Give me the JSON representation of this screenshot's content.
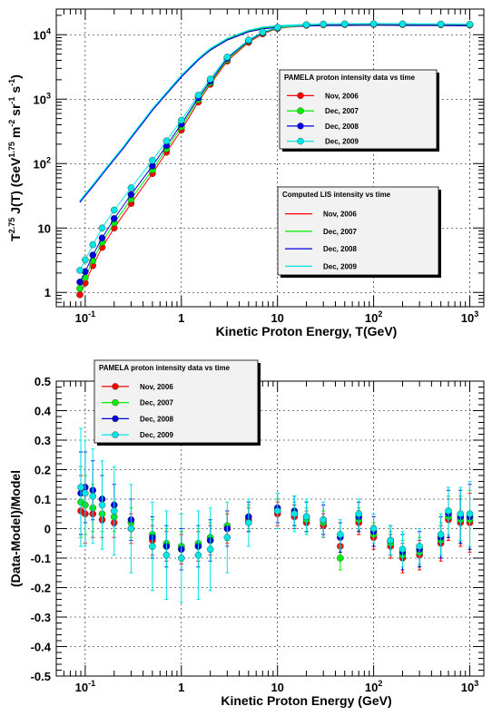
{
  "figure_colors": {
    "nov2006": "#ff0000",
    "dec2007": "#00ee00",
    "dec2008": "#0000dd",
    "dec2009": "#00e6e6"
  },
  "chart_data": [
    {
      "type": "scatter",
      "xlabel": "Kinetic Proton Energy, T(GeV)",
      "ylabel_parts": {
        "pre": "T",
        "sup1": "2.75",
        "mid": " J(T) (GeV",
        "sup2": "1.75",
        "m": " m",
        "sup3": "-2",
        "sr": " sr",
        "sup4": "-1",
        "s": " s",
        "sup5": "-1",
        "end": ")"
      },
      "xscale": "log",
      "yscale": "log",
      "xlim": [
        0.05,
        1400
      ],
      "ylim": [
        0.6,
        25000
      ],
      "grid": true,
      "xticks": [
        {
          "v": 0.1,
          "m": "10",
          "e": "-1"
        },
        {
          "v": 1,
          "m": "1",
          "e": ""
        },
        {
          "v": 10,
          "m": "10",
          "e": ""
        },
        {
          "v": 100,
          "m": "10",
          "e": "2"
        },
        {
          "v": 1000,
          "m": "10",
          "e": "3"
        }
      ],
      "yticks": [
        {
          "v": 1,
          "t": "1"
        },
        {
          "v": 10,
          "t": "10"
        },
        {
          "v": 100,
          "t": "10",
          "e": "2"
        },
        {
          "v": 1000,
          "t": "10",
          "e": "3"
        },
        {
          "v": 10000,
          "t": "10",
          "e": "4"
        }
      ],
      "legends": [
        {
          "title": "PAMELA proton intensity data vs time",
          "position": "upper-right",
          "kind": "marker",
          "entries": [
            {
              "label": "Nov, 2006",
              "key": "nov2006"
            },
            {
              "label": "Dec, 2007",
              "key": "dec2007"
            },
            {
              "label": "Dec, 2008",
              "key": "dec2008"
            },
            {
              "label": "Dec, 2009",
              "key": "dec2009"
            }
          ]
        },
        {
          "title": "Computed LIS intensity vs time",
          "position": "middle-right",
          "kind": "line",
          "entries": [
            {
              "label": "Nov, 2006",
              "key": "nov2006"
            },
            {
              "label": "Dec, 2007",
              "key": "dec2007"
            },
            {
              "label": "Dec, 2008",
              "key": "dec2008"
            },
            {
              "label": "Dec, 2009",
              "key": "dec2009"
            }
          ]
        }
      ],
      "model_x": [
        0.088,
        0.1,
        0.12,
        0.15,
        0.2,
        0.25,
        0.3,
        0.4,
        0.5,
        0.7,
        1,
        1.5,
        2,
        3,
        5,
        7,
        10,
        20,
        30,
        50,
        100,
        200,
        500,
        1000
      ],
      "model_y": [
        26,
        33,
        46,
        70,
        120,
        180,
        260,
        450,
        700,
        1250,
        2300,
        4200,
        6000,
        8600,
        11500,
        12800,
        13500,
        14200,
        14400,
        14500,
        14600,
        14500,
        14400,
        14300
      ],
      "series": [
        {
          "name": "Nov, 2006",
          "key": "nov2006",
          "x": [
            0.088,
            0.1,
            0.12,
            0.15,
            0.2,
            0.3,
            0.5,
            0.7,
            1,
            1.5,
            2,
            3,
            5,
            7,
            10,
            20,
            30,
            50,
            100,
            200,
            500,
            1000
          ],
          "y": [
            0.92,
            1.4,
            2.6,
            5,
            10,
            24,
            70,
            150,
            330,
            900,
            1700,
            3900,
            7600,
            10300,
            12500,
            14000,
            14300,
            14400,
            14500,
            14400,
            14300,
            14200
          ]
        },
        {
          "name": "Dec, 2007",
          "key": "dec2007",
          "x": [
            0.088,
            0.1,
            0.12,
            0.15,
            0.2,
            0.3,
            0.5,
            0.7,
            1,
            1.5,
            2,
            3,
            5,
            7,
            10,
            20,
            30,
            50,
            100,
            200,
            500,
            1000
          ],
          "y": [
            1.15,
            1.7,
            3.1,
            6,
            12,
            28,
            80,
            170,
            370,
            980,
            1800,
            4100,
            7900,
            10600,
            12700,
            14100,
            14400,
            14500,
            14600,
            14500,
            14400,
            14300
          ]
        },
        {
          "name": "Dec, 2008",
          "key": "dec2008",
          "x": [
            0.088,
            0.1,
            0.12,
            0.15,
            0.2,
            0.3,
            0.5,
            0.7,
            1,
            1.5,
            2,
            3,
            5,
            7,
            10,
            20,
            30,
            50,
            100,
            200,
            500,
            1000
          ],
          "y": [
            1.45,
            2.1,
            3.8,
            7,
            14,
            33,
            92,
            190,
            410,
            1050,
            1900,
            4300,
            8100,
            10800,
            12900,
            14200,
            14500,
            14600,
            14700,
            14600,
            14500,
            14400
          ]
        },
        {
          "name": "Dec, 2009",
          "key": "dec2009",
          "x": [
            0.088,
            0.1,
            0.12,
            0.15,
            0.2,
            0.3,
            0.5,
            0.7,
            1,
            1.5,
            2,
            3,
            5,
            7,
            10,
            20,
            30,
            50,
            100,
            200,
            500,
            1000
          ],
          "y": [
            2.2,
            3.2,
            5.5,
            10,
            19,
            42,
            112,
            225,
            470,
            1150,
            2050,
            4500,
            8300,
            11000,
            13000,
            14300,
            14600,
            14700,
            14800,
            14700,
            14600,
            14500
          ]
        }
      ]
    },
    {
      "type": "scatter",
      "xlabel": "Kinetic Proton Energy (GeV)",
      "ylabel": "(Data-Model)/Model",
      "xscale": "log",
      "xlim": [
        0.05,
        1400
      ],
      "ylim": [
        -0.5,
        0.5
      ],
      "grid": true,
      "xticks": [
        {
          "v": 0.1,
          "m": "10",
          "e": "-1"
        },
        {
          "v": 1,
          "m": "1",
          "e": ""
        },
        {
          "v": 10,
          "m": "10",
          "e": ""
        },
        {
          "v": 100,
          "m": "10",
          "e": "2"
        },
        {
          "v": 1000,
          "m": "10",
          "e": "3"
        }
      ],
      "yticks": [
        "-0.5",
        "-0.4",
        "-0.3",
        "-0.2",
        "-0.1",
        "0",
        "0.1",
        "0.2",
        "0.3",
        "0.4",
        "0.5"
      ],
      "legends": [
        {
          "title": "PAMELA proton intensity data vs time",
          "position": "upper-left",
          "kind": "marker",
          "entries": [
            {
              "label": "Nov, 2006",
              "key": "nov2006"
            },
            {
              "label": "Dec, 2007",
              "key": "dec2007"
            },
            {
              "label": "Dec, 2008",
              "key": "dec2008"
            },
            {
              "label": "Dec, 2009",
              "key": "dec2009"
            }
          ]
        }
      ],
      "series": [
        {
          "name": "Nov, 2006",
          "key": "nov2006",
          "x": [
            0.09,
            0.1,
            0.12,
            0.15,
            0.2,
            0.3,
            0.5,
            0.7,
            1,
            1.5,
            2,
            3,
            5,
            10,
            15,
            20,
            30,
            45,
            70,
            100,
            150,
            200,
            300,
            500,
            600,
            800,
            1000
          ],
          "y": [
            0.06,
            0.05,
            0.05,
            0.03,
            0.02,
            0.0,
            -0.04,
            -0.06,
            -0.07,
            -0.06,
            -0.04,
            0.0,
            0.03,
            0.05,
            0.04,
            0.02,
            0.01,
            -0.06,
            0.02,
            -0.03,
            -0.06,
            -0.1,
            -0.09,
            -0.05,
            0.03,
            0.02,
            0.02
          ],
          "err": [
            0.12,
            0.1,
            0.08,
            0.06,
            0.05,
            0.05,
            0.05,
            0.05,
            0.05,
            0.05,
            0.05,
            0.05,
            0.04,
            0.04,
            0.04,
            0.04,
            0.04,
            0.04,
            0.04,
            0.04,
            0.04,
            0.05,
            0.05,
            0.06,
            0.07,
            0.08,
            0.1
          ]
        },
        {
          "name": "Dec, 2007",
          "key": "dec2007",
          "x": [
            0.09,
            0.1,
            0.12,
            0.15,
            0.2,
            0.3,
            0.5,
            0.7,
            1,
            1.5,
            2,
            3,
            5,
            10,
            15,
            20,
            30,
            45,
            70,
            100,
            150,
            200,
            300,
            500,
            600,
            800,
            1000
          ],
          "y": [
            0.09,
            0.08,
            0.07,
            0.05,
            0.04,
            0.02,
            -0.02,
            -0.05,
            -0.06,
            -0.05,
            -0.03,
            0.01,
            0.04,
            0.06,
            0.05,
            0.03,
            0.02,
            -0.1,
            0.03,
            -0.02,
            -0.05,
            -0.09,
            -0.08,
            -0.04,
            0.04,
            0.03,
            0.03
          ],
          "err": [
            0.12,
            0.1,
            0.08,
            0.06,
            0.05,
            0.05,
            0.05,
            0.05,
            0.05,
            0.05,
            0.05,
            0.05,
            0.04,
            0.04,
            0.04,
            0.04,
            0.04,
            0.04,
            0.04,
            0.04,
            0.04,
            0.05,
            0.05,
            0.06,
            0.07,
            0.08,
            0.1
          ]
        },
        {
          "name": "Dec, 2008",
          "key": "dec2008",
          "x": [
            0.09,
            0.1,
            0.12,
            0.15,
            0.2,
            0.3,
            0.5,
            0.7,
            1,
            1.5,
            2,
            3,
            5,
            10,
            15,
            20,
            30,
            45,
            70,
            100,
            150,
            200,
            300,
            500,
            600,
            800,
            1000
          ],
          "y": [
            0.12,
            0.14,
            0.13,
            0.1,
            0.08,
            0.03,
            -0.03,
            -0.06,
            -0.07,
            -0.06,
            -0.04,
            0.0,
            0.04,
            0.07,
            0.06,
            0.04,
            0.03,
            -0.03,
            0.04,
            -0.01,
            -0.04,
            -0.08,
            -0.07,
            -0.03,
            0.05,
            0.04,
            0.04
          ],
          "err": [
            0.14,
            0.12,
            0.1,
            0.08,
            0.07,
            0.07,
            0.07,
            0.07,
            0.07,
            0.07,
            0.07,
            0.06,
            0.05,
            0.05,
            0.05,
            0.05,
            0.05,
            0.05,
            0.05,
            0.05,
            0.05,
            0.06,
            0.06,
            0.07,
            0.08,
            0.09,
            0.11
          ]
        },
        {
          "name": "Dec, 2009",
          "key": "dec2009",
          "x": [
            0.09,
            0.1,
            0.12,
            0.15,
            0.2,
            0.3,
            0.5,
            0.7,
            1,
            1.5,
            2,
            3,
            5,
            10,
            15,
            20,
            30,
            45,
            70,
            100,
            150,
            200,
            300,
            500,
            600,
            800,
            1000
          ],
          "y": [
            0.14,
            0.12,
            0.11,
            0.08,
            0.06,
            0.0,
            -0.06,
            -0.09,
            -0.1,
            -0.09,
            -0.07,
            -0.03,
            0.02,
            0.06,
            0.05,
            0.04,
            0.03,
            -0.02,
            0.05,
            0.0,
            -0.04,
            -0.07,
            -0.06,
            -0.02,
            0.06,
            0.05,
            0.05
          ],
          "err": [
            0.2,
            0.18,
            0.16,
            0.15,
            0.15,
            0.15,
            0.15,
            0.15,
            0.15,
            0.15,
            0.14,
            0.12,
            0.08,
            0.06,
            0.06,
            0.06,
            0.06,
            0.05,
            0.05,
            0.05,
            0.05,
            0.06,
            0.06,
            0.07,
            0.08,
            0.09,
            0.11
          ]
        }
      ]
    }
  ]
}
